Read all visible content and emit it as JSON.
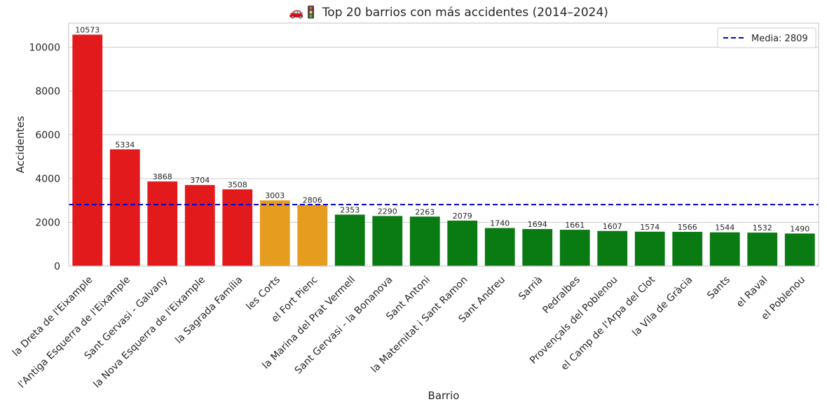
{
  "chart_data": {
    "type": "bar",
    "title": "🚗🚦 Top 20 barrios con más accidentes (2014–2024)",
    "xlabel": "Barrio",
    "ylabel": "Accidentes",
    "ylim": [
      0,
      11100
    ],
    "yticks": [
      0,
      2000,
      4000,
      6000,
      8000,
      10000
    ],
    "grid": true,
    "legend_position": "top-right",
    "categories": [
      "la Dreta de l'Eixample",
      "l'Antiga Esquerra de l'Eixample",
      "Sant Gervasi - Galvany",
      "la Nova Esquerra de l'Eixample",
      "la Sagrada Família",
      "les Corts",
      "el Fort Pienc",
      "la Marina del Prat Vermell",
      "Sant Gervasi - la Bonanova",
      "Sant Antoni",
      "la Maternitat i Sant Ramon",
      "Sant Andreu",
      "Sarrià",
      "Pedralbes",
      "Provençals del Poblenou",
      "el Camp de l'Arpa del Clot",
      "la Vila de Gràcia",
      "Sants",
      "el Raval",
      "el Poblenou"
    ],
    "values": [
      10573,
      5334,
      3868,
      3704,
      3508,
      3003,
      2806,
      2353,
      2290,
      2263,
      2079,
      1740,
      1694,
      1661,
      1607,
      1574,
      1566,
      1544,
      1532,
      1490
    ],
    "bar_colors": [
      "#e31a1c",
      "#e31a1c",
      "#e31a1c",
      "#e31a1c",
      "#e31a1c",
      "#e69c1f",
      "#e69c1f",
      "#0a7a12",
      "#0a7a12",
      "#0a7a12",
      "#0a7a12",
      "#0a7a12",
      "#0a7a12",
      "#0a7a12",
      "#0a7a12",
      "#0a7a12",
      "#0a7a12",
      "#0a7a12",
      "#0a7a12",
      "#0a7a12"
    ],
    "reference_line": {
      "label": "Media: 2809",
      "value": 2809,
      "color": "#0000cc",
      "style": "dashed"
    }
  }
}
